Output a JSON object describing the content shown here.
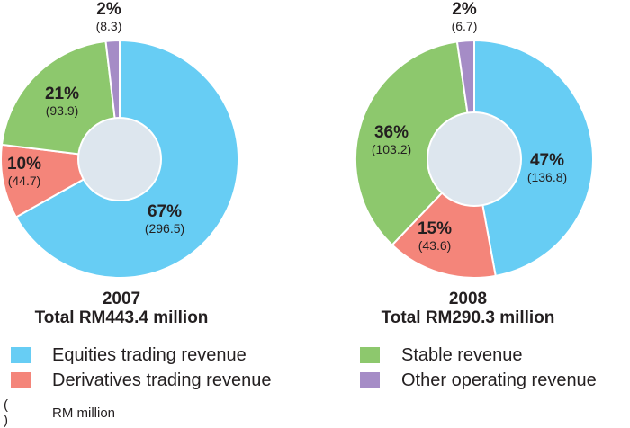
{
  "chart_data": [
    {
      "type": "pie",
      "year": "2007",
      "total_label": "Total RM443.4 million",
      "slices": [
        {
          "name": "Equities trading revenue",
          "pct_label": "67%",
          "value_label": "(296.5)",
          "value": 296.5,
          "color": "#67cdf4"
        },
        {
          "name": "Derivatives trading revenue",
          "pct_label": "10%",
          "value_label": "(44.7)",
          "value": 44.7,
          "color": "#f4857a"
        },
        {
          "name": "Stable revenue",
          "pct_label": "21%",
          "value_label": "(93.9)",
          "value": 93.9,
          "color": "#8dc86d"
        },
        {
          "name": "Other operating revenue",
          "pct_label": "2%",
          "value_label": "(8.3)",
          "value": 8.3,
          "color": "#a58cc6"
        }
      ]
    },
    {
      "type": "pie",
      "year": "2008",
      "total_label": "Total RM290.3 million",
      "slices": [
        {
          "name": "Equities trading revenue",
          "pct_label": "47%",
          "value_label": "(136.8)",
          "value": 136.8,
          "color": "#67cdf4"
        },
        {
          "name": "Derivatives trading revenue",
          "pct_label": "15%",
          "value_label": "(43.6)",
          "value": 43.6,
          "color": "#f4857a"
        },
        {
          "name": "Stable revenue",
          "pct_label": "36%",
          "value_label": "(103.2)",
          "value": 103.2,
          "color": "#8dc86d"
        },
        {
          "name": "Other operating revenue",
          "pct_label": "2%",
          "value_label": "(6.7)",
          "value": 6.7,
          "color": "#a58cc6"
        }
      ]
    }
  ],
  "legend": [
    {
      "label": "Equities trading revenue",
      "color": "#67cdf4"
    },
    {
      "label": "Derivatives trading revenue",
      "color": "#f4857a"
    },
    {
      "label": "Stable revenue",
      "color": "#8dc86d"
    },
    {
      "label": "Other operating revenue",
      "color": "#a58cc6"
    }
  ],
  "note": {
    "symbol": "( )",
    "text": "RM million"
  },
  "hole_color": "#dde6ee"
}
